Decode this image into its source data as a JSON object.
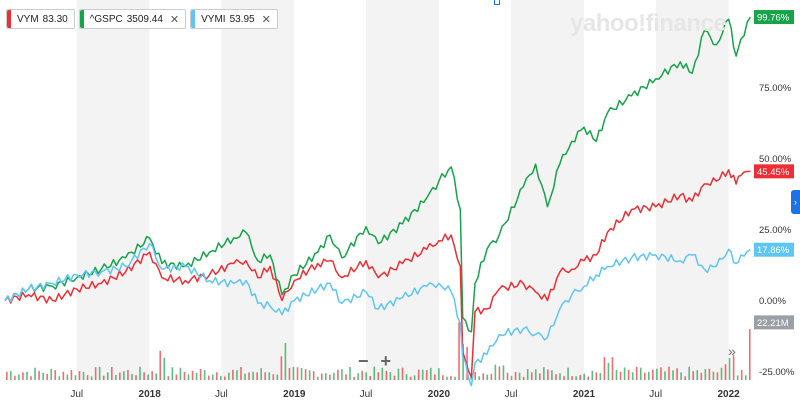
{
  "watermark": "yahoo!finance",
  "legend": [
    {
      "symbol": "VYM",
      "value": "83.30",
      "color": "#ee2e35",
      "closable": false
    },
    {
      "symbol": "^GSPC",
      "value": "3509.44",
      "color": "#17a34a",
      "closable": true
    },
    {
      "symbol": "VYMI",
      "value": "53.95",
      "color": "#5ec6f5",
      "closable": true
    }
  ],
  "controls": {
    "zoom_out": "−",
    "zoom_in": "+",
    "expand": "»",
    "side_tab": "›"
  },
  "chart_data": {
    "type": "line",
    "x_start": "2017-01",
    "x_end": "2022-03",
    "ylim": [
      -28,
      104
    ],
    "y_ticks": [
      {
        "value": 75,
        "label": "75.00%"
      },
      {
        "value": 50,
        "label": "50.00%"
      },
      {
        "value": 25,
        "label": "25.00%"
      },
      {
        "value": 0,
        "label": "0.00%"
      },
      {
        "value": -25,
        "label": "-25.00%"
      }
    ],
    "x_ticks": [
      {
        "date": "2017-07",
        "label": "Jul",
        "bold": false
      },
      {
        "date": "2018-01",
        "label": "2018",
        "bold": true
      },
      {
        "date": "2018-07",
        "label": "Jul",
        "bold": false
      },
      {
        "date": "2019-01",
        "label": "2019",
        "bold": true
      },
      {
        "date": "2019-07",
        "label": "Jul",
        "bold": false
      },
      {
        "date": "2020-01",
        "label": "2020",
        "bold": true
      },
      {
        "date": "2020-07",
        "label": "Jul",
        "bold": false
      },
      {
        "date": "2021-01",
        "label": "2021",
        "bold": true
      },
      {
        "date": "2021-07",
        "label": "Jul",
        "bold": false
      },
      {
        "date": "2022-01",
        "label": "2022",
        "bold": true
      }
    ],
    "shaded_bands": [
      {
        "from": "2017-07",
        "to": "2018-01"
      },
      {
        "from": "2018-07",
        "to": "2019-01"
      },
      {
        "from": "2019-07",
        "to": "2020-01"
      },
      {
        "from": "2020-07",
        "to": "2021-01"
      },
      {
        "from": "2021-07",
        "to": "2022-01"
      }
    ],
    "series": [
      {
        "name": "^GSPC",
        "color": "#17a34a",
        "last_label": "99.76%",
        "points": [
          [
            "2017-01",
            0
          ],
          [
            "2017-03",
            4
          ],
          [
            "2017-05",
            5
          ],
          [
            "2017-07",
            8
          ],
          [
            "2017-09",
            11
          ],
          [
            "2017-11",
            15
          ],
          [
            "2018-01",
            22
          ],
          [
            "2018-02",
            13
          ],
          [
            "2018-04",
            12
          ],
          [
            "2018-06",
            17
          ],
          [
            "2018-08",
            22
          ],
          [
            "2018-09",
            24
          ],
          [
            "2018-10",
            14
          ],
          [
            "2018-11",
            16
          ],
          [
            "2018-12",
            2
          ],
          [
            "2019-01",
            9
          ],
          [
            "2019-03",
            17
          ],
          [
            "2019-04",
            23
          ],
          [
            "2019-05",
            15
          ],
          [
            "2019-07",
            26
          ],
          [
            "2019-08",
            20
          ],
          [
            "2019-10",
            27
          ],
          [
            "2019-12",
            36
          ],
          [
            "2020-01",
            42
          ],
          [
            "2020-02",
            47
          ],
          [
            "2020-02-24",
            32
          ],
          [
            "2020-03",
            -6
          ],
          [
            "2020-03-23",
            -11
          ],
          [
            "2020-04",
            6
          ],
          [
            "2020-05",
            18
          ],
          [
            "2020-06",
            23
          ],
          [
            "2020-08",
            40
          ],
          [
            "2020-09",
            48
          ],
          [
            "2020-10",
            33
          ],
          [
            "2020-11",
            48
          ],
          [
            "2020-12",
            56
          ],
          [
            "2021-01",
            61
          ],
          [
            "2021-02",
            56
          ],
          [
            "2021-03",
            66
          ],
          [
            "2021-05",
            72
          ],
          [
            "2021-07",
            78
          ],
          [
            "2021-09",
            84
          ],
          [
            "2021-10",
            80
          ],
          [
            "2021-11",
            95
          ],
          [
            "2021-12",
            90
          ],
          [
            "2022-01",
            99
          ],
          [
            "2022-01-20",
            86
          ],
          [
            "2022-02",
            92
          ],
          [
            "2022-02-25",
            99.76
          ]
        ]
      },
      {
        "name": "VYM",
        "color": "#ee2e35",
        "last_label": "45.45%",
        "points": [
          [
            "2017-01",
            0
          ],
          [
            "2017-03",
            2
          ],
          [
            "2017-05",
            0
          ],
          [
            "2017-07",
            4
          ],
          [
            "2017-09",
            6
          ],
          [
            "2017-11",
            10
          ],
          [
            "2018-01",
            17
          ],
          [
            "2018-02",
            8
          ],
          [
            "2018-04",
            7
          ],
          [
            "2018-06",
            9
          ],
          [
            "2018-08",
            13
          ],
          [
            "2018-09",
            14
          ],
          [
            "2018-10",
            8
          ],
          [
            "2018-11",
            12
          ],
          [
            "2018-12",
            0
          ],
          [
            "2019-01",
            7
          ],
          [
            "2019-03",
            13
          ],
          [
            "2019-04",
            14
          ],
          [
            "2019-05",
            8
          ],
          [
            "2019-07",
            14
          ],
          [
            "2019-08",
            8
          ],
          [
            "2019-10",
            13
          ],
          [
            "2019-12",
            18
          ],
          [
            "2020-01",
            21
          ],
          [
            "2020-02",
            23
          ],
          [
            "2020-02-24",
            12
          ],
          [
            "2020-03",
            -18
          ],
          [
            "2020-03-23",
            -27
          ],
          [
            "2020-04",
            -4
          ],
          [
            "2020-05",
            -3
          ],
          [
            "2020-06",
            4
          ],
          [
            "2020-08",
            6
          ],
          [
            "2020-09",
            3
          ],
          [
            "2020-10",
            0
          ],
          [
            "2020-11",
            10
          ],
          [
            "2020-12",
            11
          ],
          [
            "2021-01",
            14
          ],
          [
            "2021-02",
            16
          ],
          [
            "2021-03",
            24
          ],
          [
            "2021-05",
            32
          ],
          [
            "2021-07",
            33
          ],
          [
            "2021-09",
            37
          ],
          [
            "2021-10",
            35
          ],
          [
            "2021-11",
            41
          ],
          [
            "2021-12",
            42
          ],
          [
            "2022-01",
            46
          ],
          [
            "2022-01-20",
            41
          ],
          [
            "2022-02",
            44
          ],
          [
            "2022-02-25",
            45.45
          ]
        ]
      },
      {
        "name": "VYMI",
        "color": "#5ec6f5",
        "last_label": "17.86%",
        "points": [
          [
            "2017-01",
            0
          ],
          [
            "2017-03",
            4
          ],
          [
            "2017-05",
            6
          ],
          [
            "2017-07",
            9
          ],
          [
            "2017-09",
            10
          ],
          [
            "2017-11",
            12
          ],
          [
            "2018-01",
            20
          ],
          [
            "2018-02",
            11
          ],
          [
            "2018-04",
            12
          ],
          [
            "2018-06",
            7
          ],
          [
            "2018-08",
            6
          ],
          [
            "2018-09",
            7
          ],
          [
            "2018-10",
            -1
          ],
          [
            "2018-11",
            -2
          ],
          [
            "2018-12",
            -5
          ],
          [
            "2019-01",
            0
          ],
          [
            "2019-03",
            4
          ],
          [
            "2019-04",
            6
          ],
          [
            "2019-05",
            -1
          ],
          [
            "2019-07",
            3
          ],
          [
            "2019-08",
            -3
          ],
          [
            "2019-10",
            1
          ],
          [
            "2019-12",
            5
          ],
          [
            "2020-01",
            6
          ],
          [
            "2020-02",
            3
          ],
          [
            "2020-02-24",
            -8
          ],
          [
            "2020-03",
            -20
          ],
          [
            "2020-03-23",
            -30
          ],
          [
            "2020-04",
            -22
          ],
          [
            "2020-05",
            -19
          ],
          [
            "2020-06",
            -12
          ],
          [
            "2020-08",
            -10
          ],
          [
            "2020-09",
            -12
          ],
          [
            "2020-10",
            -13
          ],
          [
            "2020-11",
            -3
          ],
          [
            "2020-12",
            2
          ],
          [
            "2021-01",
            5
          ],
          [
            "2021-02",
            9
          ],
          [
            "2021-03",
            12
          ],
          [
            "2021-05",
            15
          ],
          [
            "2021-07",
            16
          ],
          [
            "2021-09",
            14
          ],
          [
            "2021-10",
            16
          ],
          [
            "2021-11",
            11
          ],
          [
            "2021-12",
            12
          ],
          [
            "2022-01",
            18
          ],
          [
            "2022-01-20",
            13
          ],
          [
            "2022-02",
            16
          ],
          [
            "2022-02-25",
            17.86
          ]
        ]
      }
    ],
    "volume": {
      "last_label": "22.21M",
      "label_color": "#9aa0a6",
      "max_millions": 25,
      "spikes": [
        {
          "date": "2018-02",
          "millions": 11
        },
        {
          "date": "2018-12",
          "millions": 14
        },
        {
          "date": "2020-03",
          "millions": 21
        },
        {
          "date": "2020-06",
          "millions": 9
        },
        {
          "date": "2021-03",
          "millions": 8
        },
        {
          "date": "2022-01",
          "millions": 10
        },
        {
          "date": "2022-02-25",
          "millions": 22.21
        }
      ]
    }
  }
}
